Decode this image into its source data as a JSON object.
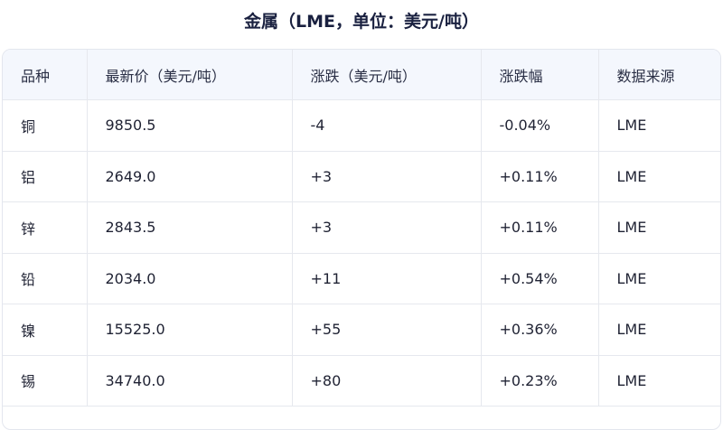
{
  "header": {
    "title": "金属（LME，单位：美元/吨）"
  },
  "table": {
    "columns": [
      "品种",
      "最新价（美元/吨）",
      "涨跌（美元/吨）",
      "涨跌幅",
      "数据来源"
    ],
    "rows": [
      [
        "铜",
        "9850.5",
        "-4",
        "-0.04%",
        "LME"
      ],
      [
        "铝",
        "2649.0",
        "+3",
        "+0.11%",
        "LME"
      ],
      [
        "锌",
        "2843.5",
        "+3",
        "+0.11%",
        "LME"
      ],
      [
        "铅",
        "2034.0",
        "+11",
        "+0.54%",
        "LME"
      ],
      [
        "镍",
        "15525.0",
        "+55",
        "+0.36%",
        "LME"
      ],
      [
        "锡",
        "34740.0",
        "+80",
        "+0.23%",
        "LME"
      ]
    ]
  }
}
